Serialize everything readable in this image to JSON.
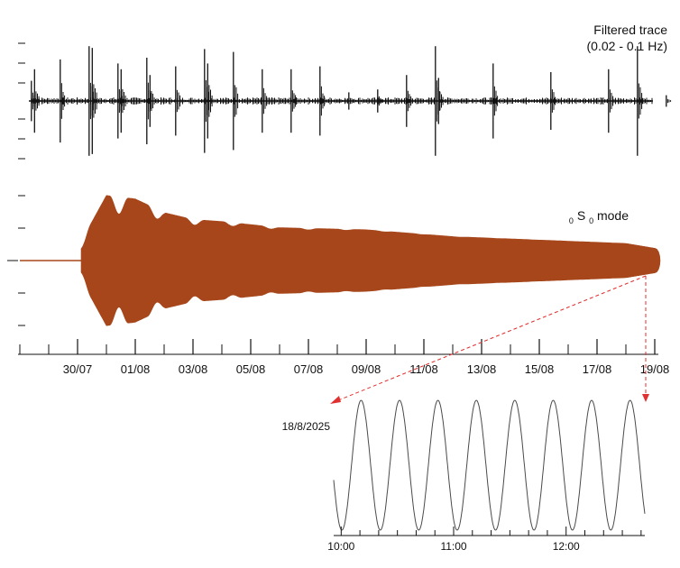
{
  "chart_data": [
    {
      "type": "line",
      "title": "Filtered trace",
      "subtitle": "(0.02 - 0.1 Hz)",
      "x_axis": "shared date axis",
      "grid": false,
      "events": [
        {
          "date": "2025-07-28",
          "amplitude": 0.35
        },
        {
          "date": "2025-07-28",
          "amplitude": 0.55
        },
        {
          "date": "2025-07-29",
          "amplitude": 0.72
        },
        {
          "date": "2025-07-30",
          "amplitude": 0.95
        },
        {
          "date": "2025-07-30",
          "amplitude": 0.92
        },
        {
          "date": "2025-07-31",
          "amplitude": 0.65
        },
        {
          "date": "2025-07-31",
          "amplitude": 0.55
        },
        {
          "date": "2025-08-01",
          "amplitude": 0.75
        },
        {
          "date": "2025-08-01",
          "amplitude": 0.45
        },
        {
          "date": "2025-08-02",
          "amplitude": 0.6
        },
        {
          "date": "2025-08-03",
          "amplitude": 0.9
        },
        {
          "date": "2025-08-03",
          "amplitude": 0.65
        },
        {
          "date": "2025-08-04",
          "amplitude": 0.85
        },
        {
          "date": "2025-08-05",
          "amplitude": 0.55
        },
        {
          "date": "2025-08-06",
          "amplitude": 0.55
        },
        {
          "date": "2025-08-07",
          "amplitude": 0.6
        },
        {
          "date": "2025-08-08",
          "amplitude": 0.15
        },
        {
          "date": "2025-08-09",
          "amplitude": 0.2
        },
        {
          "date": "2025-08-10",
          "amplitude": 0.45
        },
        {
          "date": "2025-08-11",
          "amplitude": 0.95
        },
        {
          "date": "2025-08-11",
          "amplitude": 0.4
        },
        {
          "date": "2025-08-13",
          "amplitude": 0.65
        },
        {
          "date": "2025-08-15",
          "amplitude": 0.5
        },
        {
          "date": "2025-08-17",
          "amplitude": 0.55
        },
        {
          "date": "2025-08-18",
          "amplitude": 0.95
        },
        {
          "date": "2025-08-19",
          "amplitude": 0.1
        }
      ]
    },
    {
      "type": "area",
      "title": "0S0 mode",
      "title_parts": {
        "pre": "0",
        "letter": "S",
        "sub": "0",
        "post": " mode"
      },
      "x_ticks": [
        "30/07",
        "01/08",
        "03/08",
        "05/08",
        "07/08",
        "09/08",
        "11/08",
        "13/08",
        "15/08",
        "17/08",
        "19/08"
      ],
      "xlim": [
        "2025-07-28",
        "2025-08-19"
      ],
      "ylim": [
        -1,
        1
      ],
      "grid": false,
      "color": "#A6461A",
      "envelope": [
        {
          "date": "2025-07-28",
          "amplitude": 0.02
        },
        {
          "date": "2025-07-30",
          "amplitude": 0.03
        },
        {
          "date": "2025-07-30",
          "amplitude": 0.28
        },
        {
          "date": "2025-07-31",
          "amplitude": 0.95
        },
        {
          "date": "2025-08-01",
          "amplitude": 0.9
        },
        {
          "date": "2025-08-02",
          "amplitude": 0.7
        },
        {
          "date": "2025-08-03",
          "amplitude": 0.6
        },
        {
          "date": "2025-08-04",
          "amplitude": 0.57
        },
        {
          "date": "2025-08-06",
          "amplitude": 0.48
        },
        {
          "date": "2025-08-09",
          "amplitude": 0.45
        },
        {
          "date": "2025-08-12",
          "amplitude": 0.35
        },
        {
          "date": "2025-08-15",
          "amplitude": 0.3
        },
        {
          "date": "2025-08-18",
          "amplitude": 0.25
        },
        {
          "date": "2025-08-19",
          "amplitude": 0.18
        }
      ]
    },
    {
      "type": "line",
      "date_label": "18/8/2025",
      "x_ticks": [
        "10:00",
        "11:00",
        "12:00"
      ],
      "x_range": [
        "09:56",
        "12:42"
      ],
      "period_minutes": 20.5,
      "cycles_shown": 8,
      "color": "#4a4a4a",
      "grid": false
    }
  ],
  "zoom_arrow_color": "#e03030"
}
